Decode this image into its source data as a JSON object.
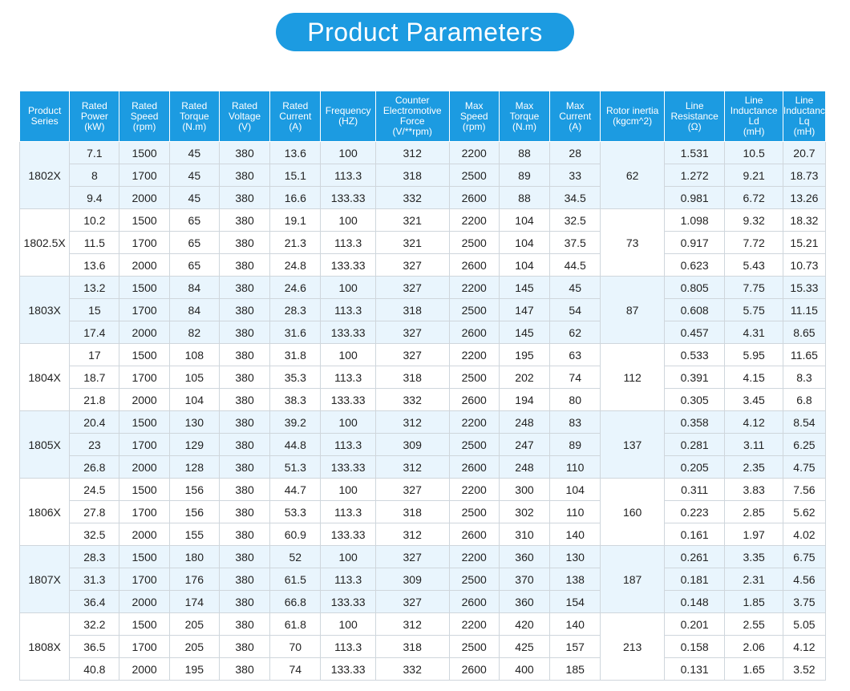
{
  "header": {
    "title": "Product Parameters"
  },
  "table": {
    "columns": [
      "Product\nSeries",
      "Rated\nPower\n(kW)",
      "Rated\nSpeed\n(rpm)",
      "Rated\nTorque\n(N.m)",
      "Rated\nVoltage\n(V)",
      "Rated\nCurrent\n(A)",
      "Frequency\n(HZ)",
      "Counter\nElectromotive\nForce\n(V/**rpm)",
      "Max\nSpeed\n(rpm)",
      "Max\nTorque\n(N.m)",
      "Max\nCurrent\n(A)",
      "Rotor inertia\n(kgcm^2)",
      "Line\nResistance\n(Ω)",
      "Line\nInductance\nLd\n(mH)",
      "Line\nInductance\nLq\n(mH)"
    ],
    "groups": [
      {
        "series": "1802X",
        "rotor_inertia": 62,
        "rows": [
          [
            7.1,
            1500,
            45,
            380,
            13.6,
            100,
            312,
            2200,
            88,
            28,
            1.531,
            10.5,
            20.7
          ],
          [
            8,
            1700,
            45,
            380,
            15.1,
            113.3,
            318,
            2500,
            89,
            33,
            1.272,
            9.21,
            18.73
          ],
          [
            9.4,
            2000,
            45,
            380,
            16.6,
            133.33,
            332,
            2600,
            88,
            34.5,
            0.981,
            6.72,
            13.26
          ]
        ]
      },
      {
        "series": "1802.5X",
        "rotor_inertia": 73,
        "rows": [
          [
            10.2,
            1500,
            65,
            380,
            19.1,
            100,
            321,
            2200,
            104,
            32.5,
            1.098,
            9.32,
            18.32
          ],
          [
            11.5,
            1700,
            65,
            380,
            21.3,
            113.3,
            321,
            2500,
            104,
            37.5,
            0.917,
            7.72,
            15.21
          ],
          [
            13.6,
            2000,
            65,
            380,
            24.8,
            133.33,
            327,
            2600,
            104,
            44.5,
            0.623,
            5.43,
            10.73
          ]
        ]
      },
      {
        "series": "1803X",
        "rotor_inertia": 87,
        "rows": [
          [
            13.2,
            1500,
            84,
            380,
            24.6,
            100,
            327,
            2200,
            145,
            45,
            0.805,
            7.75,
            15.33
          ],
          [
            15,
            1700,
            84,
            380,
            28.3,
            113.3,
            318,
            2500,
            147,
            54,
            0.608,
            5.75,
            11.15
          ],
          [
            17.4,
            2000,
            82,
            380,
            31.6,
            133.33,
            327,
            2600,
            145,
            62,
            0.457,
            4.31,
            8.65
          ]
        ]
      },
      {
        "series": "1804X",
        "rotor_inertia": 112,
        "rows": [
          [
            17,
            1500,
            108,
            380,
            31.8,
            100,
            327,
            2200,
            195,
            63,
            0.533,
            5.95,
            11.65
          ],
          [
            18.7,
            1700,
            105,
            380,
            35.3,
            113.3,
            318,
            2500,
            202,
            74,
            0.391,
            4.15,
            8.3
          ],
          [
            21.8,
            2000,
            104,
            380,
            38.3,
            133.33,
            332,
            2600,
            194,
            80,
            0.305,
            3.45,
            6.8
          ]
        ]
      },
      {
        "series": "1805X",
        "rotor_inertia": 137,
        "rows": [
          [
            20.4,
            1500,
            130,
            380,
            39.2,
            100,
            312,
            2200,
            248,
            83,
            0.358,
            4.12,
            8.54
          ],
          [
            23,
            1700,
            129,
            380,
            44.8,
            113.3,
            309,
            2500,
            247,
            89,
            0.281,
            3.11,
            6.25
          ],
          [
            26.8,
            2000,
            128,
            380,
            51.3,
            133.33,
            312,
            2600,
            248,
            110,
            0.205,
            2.35,
            4.75
          ]
        ]
      },
      {
        "series": "1806X",
        "rotor_inertia": 160,
        "rows": [
          [
            24.5,
            1500,
            156,
            380,
            44.7,
            100,
            327,
            2200,
            300,
            104,
            0.311,
            3.83,
            7.56
          ],
          [
            27.8,
            1700,
            156,
            380,
            53.3,
            113.3,
            318,
            2500,
            302,
            110,
            0.223,
            2.85,
            5.62
          ],
          [
            32.5,
            2000,
            155,
            380,
            60.9,
            133.33,
            312,
            2600,
            310,
            140,
            0.161,
            1.97,
            4.02
          ]
        ]
      },
      {
        "series": "1807X",
        "rotor_inertia": 187,
        "rows": [
          [
            28.3,
            1500,
            180,
            380,
            52,
            100,
            327,
            2200,
            360,
            130,
            0.261,
            3.35,
            6.75
          ],
          [
            31.3,
            1700,
            176,
            380,
            61.5,
            113.3,
            309,
            2500,
            370,
            138,
            0.181,
            2.31,
            4.56
          ],
          [
            36.4,
            2000,
            174,
            380,
            66.8,
            133.33,
            327,
            2600,
            360,
            154,
            0.148,
            1.85,
            3.75
          ]
        ]
      },
      {
        "series": "1808X",
        "rotor_inertia": 213,
        "rows": [
          [
            32.2,
            1500,
            205,
            380,
            61.8,
            100,
            312,
            2200,
            420,
            140,
            0.201,
            2.55,
            5.05
          ],
          [
            36.5,
            1700,
            205,
            380,
            70,
            113.3,
            318,
            2500,
            425,
            157,
            0.158,
            2.06,
            4.12
          ],
          [
            40.8,
            2000,
            195,
            380,
            74,
            133.33,
            332,
            2600,
            400,
            185,
            0.131,
            1.65,
            3.52
          ]
        ]
      }
    ]
  }
}
